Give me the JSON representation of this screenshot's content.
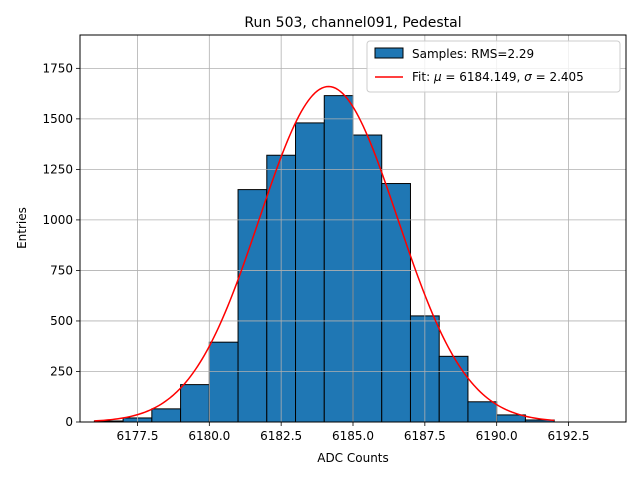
{
  "chart_data": {
    "type": "histogram",
    "title": "Run 503, channel091, Pedestal",
    "xlabel": "ADC Counts",
    "ylabel": "Entries",
    "xlim": [
      6175.5,
      6194.5
    ],
    "ylim": [
      0,
      1915
    ],
    "xticks": [
      6177.5,
      6180.0,
      6182.5,
      6185.0,
      6187.5,
      6190.0,
      6192.5
    ],
    "xtick_labels": [
      "6177.5",
      "6180.0",
      "6182.5",
      "6185.0",
      "6187.5",
      "6190.0",
      "6192.5"
    ],
    "yticks": [
      0,
      250,
      500,
      750,
      1000,
      1250,
      1500,
      1750
    ],
    "ytick_labels": [
      "0",
      "250",
      "500",
      "750",
      "1000",
      "1250",
      "1500",
      "1750"
    ],
    "grid": true,
    "legend_position": "top-right",
    "bins": [
      {
        "x0": 6176,
        "x1": 6177,
        "count": 5
      },
      {
        "x0": 6177,
        "x1": 6178,
        "count": 20
      },
      {
        "x0": 6178,
        "x1": 6179,
        "count": 65
      },
      {
        "x0": 6179,
        "x1": 6180,
        "count": 185
      },
      {
        "x0": 6180,
        "x1": 6181,
        "count": 395
      },
      {
        "x0": 6181,
        "x1": 6182,
        "count": 1150
      },
      {
        "x0": 6182,
        "x1": 6183,
        "count": 1320
      },
      {
        "x0": 6183,
        "x1": 6184,
        "count": 1480
      },
      {
        "x0": 6184,
        "x1": 6185,
        "count": 1615
      },
      {
        "x0": 6185,
        "x1": 6186,
        "count": 1420
      },
      {
        "x0": 6186,
        "x1": 6187,
        "count": 1180
      },
      {
        "x0": 6187,
        "x1": 6188,
        "count": 525
      },
      {
        "x0": 6188,
        "x1": 6189,
        "count": 325
      },
      {
        "x0": 6189,
        "x1": 6190,
        "count": 100
      },
      {
        "x0": 6190,
        "x1": 6191,
        "count": 35
      },
      {
        "x0": 6191,
        "x1": 6192,
        "count": 10
      }
    ],
    "fit": {
      "mu": 6184.149,
      "sigma": 2.405,
      "amplitude": 1660,
      "x_range": [
        6176,
        6192
      ]
    },
    "legend": [
      {
        "label": "Samples: RMS=2.29",
        "kind": "patch",
        "color": "#1f77b4"
      },
      {
        "label_prefix": "Fit: ",
        "mu_symbol": "μ",
        "mu_text": " = 6184.149, ",
        "sigma_symbol": "σ",
        "sigma_text": " = 2.405",
        "kind": "line",
        "color": "#ff0000"
      }
    ],
    "bar_color": "#1f77b4",
    "edge_color": "#000000",
    "fit_color": "#ff0000",
    "grid_color": "#b0b0b0"
  }
}
